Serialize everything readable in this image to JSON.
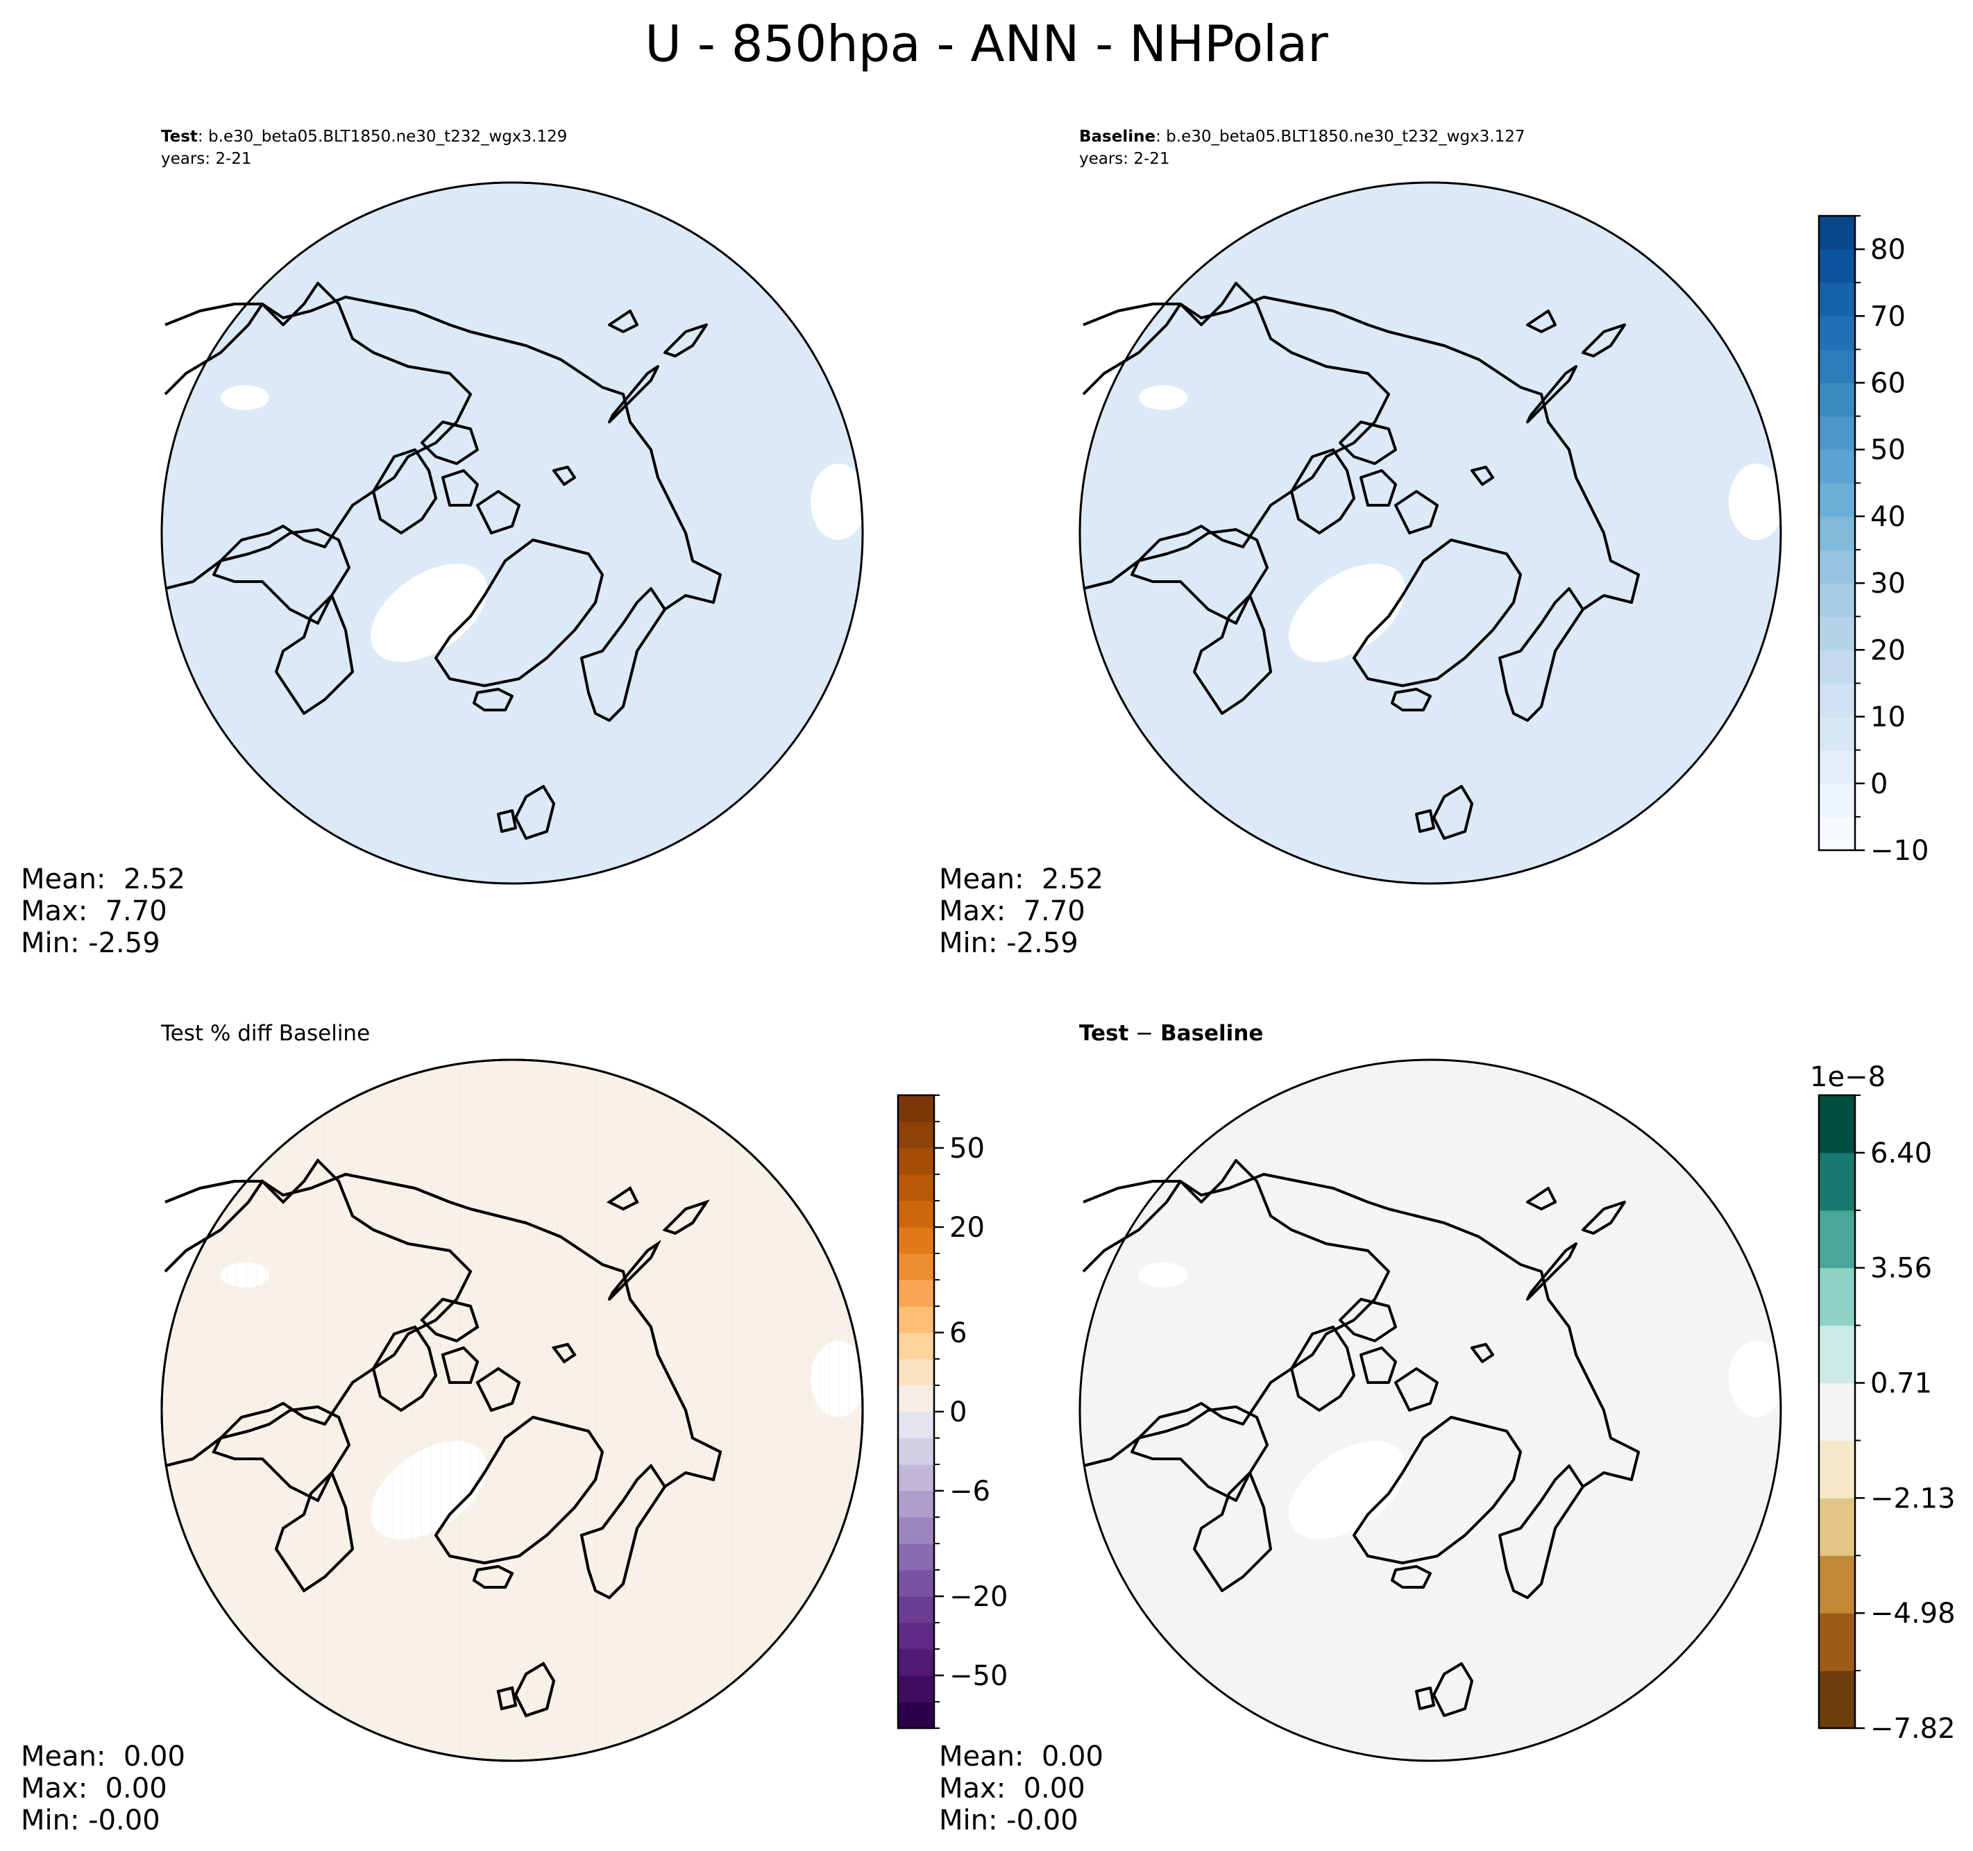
{
  "figure_title": "U - 850hpa - ANN - NHPolar",
  "panels": {
    "test": {
      "label": "Test",
      "case": ": b.e30_beta05.BLT1850.ne30_t232_wgx3.129",
      "years": "years: 2-21",
      "stats": {
        "mean": "Mean:  2.52",
        "max": "Max:  7.70",
        "min": "Min: -2.59"
      },
      "fill_color": "#dce9f6"
    },
    "baseline": {
      "label": "Baseline",
      "case": ": b.e30_beta05.BLT1850.ne30_t232_wgx3.127",
      "years": "years: 2-21",
      "stats": {
        "mean": "Mean:  2.52",
        "max": "Max:  7.70",
        "min": "Min: -2.59"
      },
      "fill_color": "#dce9f6"
    },
    "pct_diff": {
      "title": "Test % diff Baseline",
      "stats": {
        "mean": "Mean:  0.00",
        "max": "Max:  0.00",
        "min": "Min: -0.00"
      },
      "fill_color": "#f8f1e8"
    },
    "diff": {
      "title_a": "Test",
      "title_sep": " − ",
      "title_b": "Baseline",
      "stats": {
        "mean": "Mean:  0.00",
        "max": "Max:  0.00",
        "min": "Min: -0.00"
      },
      "fill_color": "#f3f5f4"
    }
  },
  "chart_data": [
    {
      "type": "heatmap",
      "name": "test",
      "stats": {
        "mean": 2.52,
        "max": 7.7,
        "min": -2.59
      },
      "colorbar": null
    },
    {
      "type": "heatmap",
      "name": "baseline",
      "stats": {
        "mean": 2.52,
        "max": 7.7,
        "min": -2.59
      },
      "colorbar": {
        "levels": [
          -10,
          -5,
          0,
          5,
          10,
          15,
          20,
          25,
          30,
          35,
          40,
          45,
          50,
          55,
          60,
          65,
          70,
          75,
          80,
          85
        ],
        "tick_values": [
          -10,
          0,
          10,
          20,
          30,
          40,
          50,
          60,
          70,
          80
        ],
        "tick_labels": [
          "−10",
          "0",
          "10",
          "20",
          "30",
          "40",
          "50",
          "60",
          "70",
          "80"
        ],
        "colors": [
          "#f7fbff",
          "#eef5fc",
          "#e3eef9",
          "#d8e7f5",
          "#cfe1f2",
          "#c4daee",
          "#b5d4e9",
          "#a6cde4",
          "#94c4df",
          "#80b9da",
          "#6baed6",
          "#5ba3d0",
          "#4a97c9",
          "#3b8bc2",
          "#2c7ebb",
          "#2070b4",
          "#1663aa",
          "#0b559f",
          "#08468a"
        ]
      },
      "colorbar_scale": ""
    },
    {
      "type": "heatmap",
      "name": "pct_diff",
      "stats": {
        "mean": 0.0,
        "max": 0.0,
        "min": -0.0
      },
      "colorbar": {
        "levels": [
          -100,
          -75,
          -50,
          -40,
          -30,
          -20,
          -15,
          -10,
          -8,
          -6,
          -4,
          -2,
          0,
          2,
          4,
          6,
          8,
          10,
          15,
          20,
          30,
          40,
          50,
          75,
          100
        ],
        "tick_values": [
          -50,
          -20,
          -6,
          0,
          6,
          20,
          50
        ],
        "tick_labels": [
          "−50",
          "−20",
          "−6",
          "0",
          "6",
          "20",
          "50"
        ],
        "colors": [
          "#2d004b",
          "#3f0d5f",
          "#521a73",
          "#5e2a85",
          "#6b3d93",
          "#7a53a0",
          "#8a6bb0",
          "#9b85bd",
          "#ad9ecb",
          "#c0b7d9",
          "#d2cfe6",
          "#e4e3f0",
          "#f4eee6",
          "#fce2c3",
          "#fdd29b",
          "#fdbf76",
          "#f8a654",
          "#ee8d30",
          "#e07918",
          "#cd670b",
          "#b95906",
          "#a44d05",
          "#8e4208",
          "#7a370a"
        ]
      },
      "colorbar_scale": ""
    },
    {
      "type": "heatmap",
      "name": "diff",
      "stats": {
        "mean": 0.0,
        "max": 0.0,
        "min": -0.0
      },
      "colorbar": {
        "levels": [
          -7.82,
          -6.4,
          -4.98,
          -3.56,
          -2.13,
          -0.71,
          0.71,
          2.13,
          3.56,
          4.98,
          6.4,
          7.82
        ],
        "tick_values": [
          -7.82,
          -4.98,
          -2.13,
          0.71,
          3.56,
          6.4
        ],
        "tick_labels": [
          "−7.82",
          "−4.98",
          "−2.13",
          "0.71",
          "3.56",
          "6.40"
        ],
        "colors": [
          "#6d3f0d",
          "#9c5c18",
          "#c18835",
          "#e1c687",
          "#f5e8c8",
          "#f3f5f4",
          "#cbeae4",
          "#8dd2c4",
          "#4aa69b",
          "#17796f",
          "#014d40"
        ]
      },
      "colorbar_scale": "1e−8"
    }
  ]
}
